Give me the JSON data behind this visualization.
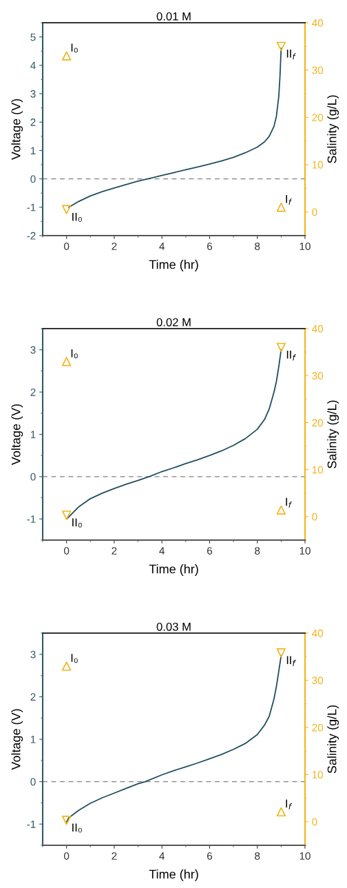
{
  "chart_data": [
    {
      "type": "line",
      "title": "0.01 M",
      "xlabel": "Time (hr)",
      "ylabel": "Voltage (V)",
      "y2label": "Salinity (g/L)",
      "xlim": [
        -1,
        10
      ],
      "xticks": [
        0,
        2,
        4,
        6,
        8,
        10
      ],
      "ylim": [
        -2,
        5.5
      ],
      "yticks": [
        -2,
        -1,
        0,
        1,
        2,
        3,
        4,
        5
      ],
      "y2lim": [
        -5,
        40
      ],
      "y2ticks": [
        0,
        10,
        20,
        30,
        40
      ],
      "series": [
        {
          "color": "#1f4e5f",
          "x": [
            0.1,
            0.5,
            1,
            1.5,
            2,
            2.5,
            3,
            3.5,
            4,
            4.5,
            5,
            5.5,
            6,
            6.5,
            7,
            7.5,
            8,
            8.3,
            8.5,
            8.7,
            8.8,
            8.9,
            8.95,
            9.0
          ],
          "values": [
            -1.0,
            -0.8,
            -0.6,
            -0.45,
            -0.32,
            -0.2,
            -0.08,
            0.02,
            0.12,
            0.22,
            0.32,
            0.42,
            0.52,
            0.63,
            0.76,
            0.92,
            1.12,
            1.3,
            1.5,
            1.85,
            2.2,
            2.9,
            3.6,
            4.6
          ]
        },
        {
          "type": "scatter",
          "name": "I₀",
          "axis": "y2",
          "marker": "triangle",
          "color": "#f5b31a",
          "x": [
            0
          ],
          "values": [
            33
          ]
        },
        {
          "type": "scatter",
          "name": "I$_{f}$",
          "axis": "y2",
          "marker": "triangle",
          "color": "#f5b31a",
          "x": [
            9
          ],
          "values": [
            1
          ]
        },
        {
          "type": "scatter",
          "name": "II₀",
          "axis": "y2",
          "marker": "triangle_down",
          "color": "#f5b31a",
          "x": [
            0
          ],
          "values": [
            0.5
          ]
        },
        {
          "type": "scatter",
          "name": "II$_{f}$",
          "axis": "y2",
          "marker": "triangle_down",
          "color": "#f5b31a",
          "x": [
            9
          ],
          "values": [
            35
          ]
        }
      ],
      "ref_lines": [
        {
          "axis": "y",
          "value": 0,
          "color": "#808080",
          "line_style": "dashed"
        }
      ]
    },
    {
      "type": "line",
      "title": "0.02 M",
      "xlabel": "Time (hr)",
      "ylabel": "Voltage (V)",
      "y2label": "Salinity (g/L)",
      "xlim": [
        -1,
        10
      ],
      "xticks": [
        0,
        2,
        4,
        6,
        8,
        10
      ],
      "ylim": [
        -1.5,
        3.5
      ],
      "yticks": [
        -1,
        0,
        1,
        2,
        3
      ],
      "y2lim": [
        -5,
        40
      ],
      "y2ticks": [
        0,
        10,
        20,
        30,
        40
      ],
      "series": [
        {
          "color": "#1f4e5f",
          "x": [
            0,
            0.1,
            0.5,
            1,
            1.5,
            2,
            2.5,
            3,
            3.5,
            4,
            4.5,
            5,
            5.5,
            6,
            6.5,
            7,
            7.5,
            8,
            8.3,
            8.5,
            8.7,
            8.8,
            8.9,
            9.0
          ],
          "values": [
            -1.0,
            -0.95,
            -0.72,
            -0.52,
            -0.39,
            -0.28,
            -0.18,
            -0.09,
            0.01,
            0.12,
            0.21,
            0.31,
            0.4,
            0.5,
            0.61,
            0.74,
            0.9,
            1.12,
            1.35,
            1.6,
            2.0,
            2.25,
            2.6,
            3.0
          ]
        },
        {
          "type": "scatter",
          "name": "I₀",
          "axis": "y2",
          "marker": "triangle",
          "color": "#f5b31a",
          "x": [
            0
          ],
          "values": [
            33
          ]
        },
        {
          "type": "scatter",
          "name": "I$_{f}$",
          "axis": "y2",
          "marker": "triangle",
          "color": "#f5b31a",
          "x": [
            9
          ],
          "values": [
            1.4
          ]
        },
        {
          "type": "scatter",
          "name": "II₀",
          "axis": "y2",
          "marker": "triangle_down",
          "color": "#f5b31a",
          "x": [
            0
          ],
          "values": [
            0.3
          ]
        },
        {
          "type": "scatter",
          "name": "II$_{f}$",
          "axis": "y2",
          "marker": "triangle_down",
          "color": "#f5b31a",
          "x": [
            9
          ],
          "values": [
            36
          ]
        }
      ],
      "ref_lines": [
        {
          "axis": "y",
          "value": 0,
          "color": "#808080",
          "line_style": "dashed"
        }
      ]
    },
    {
      "type": "line",
      "title": "0.03 M",
      "xlabel": "Time (hr)",
      "ylabel": "Voltage (V)",
      "y2label": "Salinity (g/L)",
      "xlim": [
        -1,
        10
      ],
      "xticks": [
        0,
        2,
        4,
        6,
        8,
        10
      ],
      "ylim": [
        -1.5,
        3.5
      ],
      "yticks": [
        -1,
        0,
        1,
        2,
        3
      ],
      "y2lim": [
        -5,
        40
      ],
      "y2ticks": [
        0,
        10,
        20,
        30,
        40
      ],
      "series": [
        {
          "color": "#1f4e5f",
          "x": [
            0,
            0.1,
            0.5,
            1,
            1.5,
            2,
            2.5,
            3,
            3.3,
            4,
            4.5,
            5,
            5.5,
            6,
            6.5,
            7,
            7.5,
            8,
            8.3,
            8.5,
            8.7,
            8.8,
            8.9,
            9.0
          ],
          "values": [
            -0.95,
            -0.85,
            -0.68,
            -0.51,
            -0.38,
            -0.27,
            -0.16,
            -0.05,
            0.0,
            0.16,
            0.26,
            0.35,
            0.44,
            0.54,
            0.64,
            0.76,
            0.9,
            1.11,
            1.33,
            1.54,
            1.95,
            2.24,
            2.6,
            2.97
          ]
        },
        {
          "type": "scatter",
          "name": "I₀",
          "axis": "y2",
          "marker": "triangle",
          "color": "#f5b31a",
          "x": [
            0
          ],
          "values": [
            33
          ]
        },
        {
          "type": "scatter",
          "name": "I$_{f}$",
          "axis": "y2",
          "marker": "triangle",
          "color": "#f5b31a",
          "x": [
            9
          ],
          "values": [
            2.1
          ]
        },
        {
          "type": "scatter",
          "name": "II₀",
          "axis": "y2",
          "marker": "triangle_down",
          "color": "#f5b31a",
          "x": [
            0
          ],
          "values": [
            0.3
          ]
        },
        {
          "type": "scatter",
          "name": "II$_{f}$",
          "axis": "y2",
          "marker": "triangle_down",
          "color": "#f5b31a",
          "x": [
            9
          ],
          "values": [
            35.8
          ]
        }
      ],
      "ref_lines": [
        {
          "axis": "y",
          "value": 0,
          "color": "#808080",
          "line_style": "dashed"
        }
      ]
    }
  ]
}
